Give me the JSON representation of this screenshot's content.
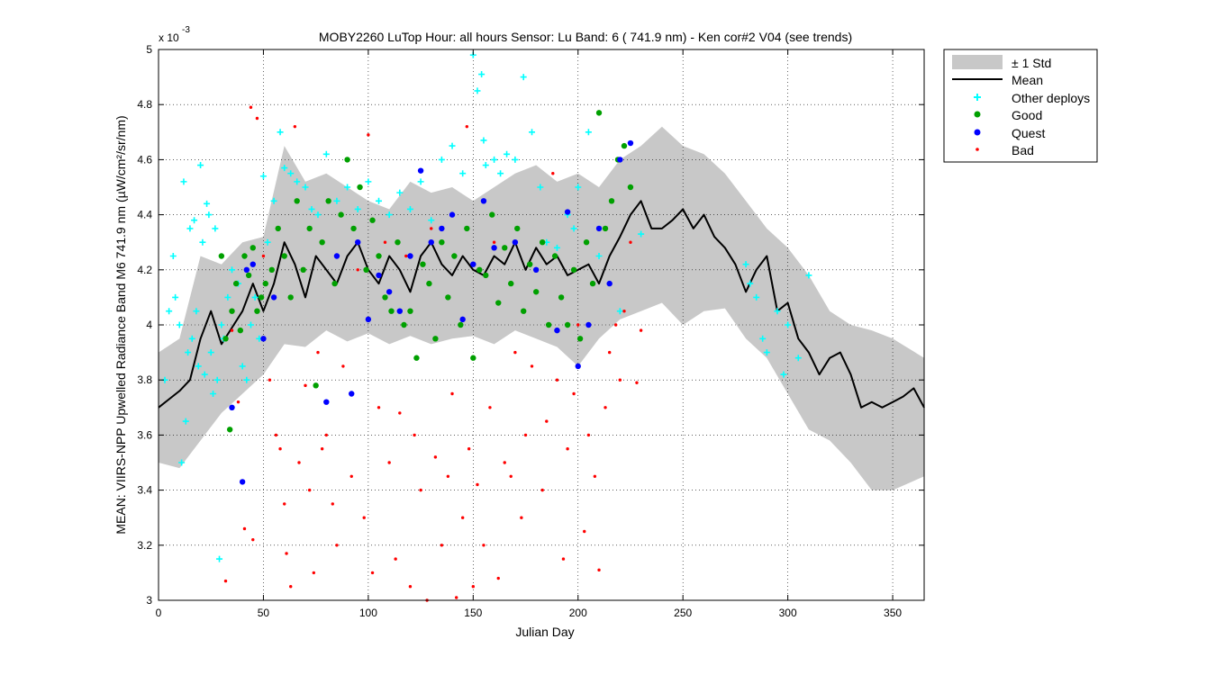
{
  "chart_data": {
    "type": "scatter",
    "title": "MOBY2260   LuTop  Hour: all hours  Sensor: Lu Band: 6 ( 741.9 nm)  - Ken cor#2 V04 (see trends)",
    "xlabel": "Julian Day",
    "ylabel": "MEAN: VIIRS-NPP Upwelled Radiance Band M6 741.9 nm (µW/cm²/sr/nm)",
    "y_exponent_label": "x 10",
    "y_exponent_power": "-3",
    "xlim": [
      0,
      365
    ],
    "ylim": [
      3.0,
      5.0
    ],
    "y_scale_factor": "1e-3",
    "grid": true,
    "legend_position": "outside-top-right",
    "x_ticks": [
      "0",
      "50",
      "100",
      "150",
      "200",
      "250",
      "300",
      "350"
    ],
    "y_ticks": [
      "3",
      "3.2",
      "3.4",
      "3.6",
      "3.8",
      "4",
      "4.2",
      "4.4",
      "4.6",
      "4.8",
      "5"
    ],
    "colors": {
      "std_band": "#c8c8c8",
      "mean": "#000000",
      "other": "#00ffff",
      "good": "#00a000",
      "quest": "#0000ff",
      "bad": "#ff0000"
    },
    "legend": [
      {
        "label": "± 1 Std",
        "marker": "band"
      },
      {
        "label": "Mean",
        "marker": "line"
      },
      {
        "label": "Other deploys",
        "marker": "plus"
      },
      {
        "label": "Good",
        "marker": "dot"
      },
      {
        "label": "Quest",
        "marker": "dot"
      },
      {
        "label": "Bad",
        "marker": "small-dot"
      }
    ],
    "series": [
      {
        "name": "± 1 Std",
        "x": [
          0,
          10,
          20,
          30,
          40,
          50,
          60,
          70,
          80,
          90,
          100,
          110,
          120,
          130,
          140,
          150,
          160,
          170,
          180,
          190,
          200,
          210,
          220,
          230,
          240,
          250,
          260,
          270,
          280,
          290,
          300,
          310,
          320,
          330,
          340,
          350,
          365
        ],
        "lower": [
          3.5,
          3.48,
          3.58,
          3.68,
          3.75,
          3.82,
          3.93,
          3.92,
          3.98,
          3.94,
          3.97,
          3.93,
          3.96,
          3.93,
          3.95,
          3.96,
          3.93,
          3.98,
          3.95,
          3.92,
          3.85,
          3.95,
          4.02,
          4.05,
          4.08,
          4.0,
          4.05,
          4.06,
          3.95,
          3.88,
          3.75,
          3.62,
          3.58,
          3.5,
          3.4,
          3.4,
          3.45
        ],
        "upper": [
          3.9,
          3.95,
          4.25,
          4.22,
          4.3,
          4.32,
          4.65,
          4.52,
          4.55,
          4.5,
          4.45,
          4.42,
          4.52,
          4.48,
          4.5,
          4.45,
          4.5,
          4.55,
          4.58,
          4.52,
          4.55,
          4.5,
          4.6,
          4.65,
          4.72,
          4.65,
          4.62,
          4.55,
          4.45,
          4.35,
          4.28,
          4.18,
          4.05,
          4.0,
          3.98,
          3.95,
          3.88
        ]
      },
      {
        "name": "Mean",
        "x": [
          0,
          5,
          10,
          15,
          20,
          25,
          30,
          35,
          40,
          45,
          50,
          55,
          60,
          65,
          70,
          75,
          80,
          85,
          90,
          95,
          100,
          105,
          110,
          115,
          120,
          125,
          130,
          135,
          140,
          145,
          150,
          155,
          160,
          165,
          170,
          175,
          180,
          185,
          190,
          195,
          200,
          205,
          210,
          215,
          220,
          225,
          230,
          235,
          240,
          245,
          250,
          255,
          260,
          265,
          270,
          275,
          280,
          285,
          290,
          295,
          300,
          305,
          310,
          315,
          320,
          325,
          330,
          335,
          340,
          345,
          350,
          355,
          360,
          365
        ],
        "y": [
          3.7,
          3.73,
          3.76,
          3.8,
          3.95,
          4.05,
          3.93,
          3.99,
          4.05,
          4.15,
          4.05,
          4.15,
          4.3,
          4.22,
          4.1,
          4.25,
          4.2,
          4.15,
          4.25,
          4.3,
          4.2,
          4.15,
          4.25,
          4.2,
          4.12,
          4.25,
          4.3,
          4.22,
          4.18,
          4.25,
          4.2,
          4.18,
          4.25,
          4.22,
          4.3,
          4.2,
          4.28,
          4.22,
          4.25,
          4.18,
          4.2,
          4.22,
          4.15,
          4.25,
          4.32,
          4.4,
          4.45,
          4.35,
          4.35,
          4.38,
          4.42,
          4.35,
          4.4,
          4.32,
          4.28,
          4.22,
          4.12,
          4.2,
          4.25,
          4.05,
          4.08,
          3.95,
          3.9,
          3.82,
          3.88,
          3.9,
          3.82,
          3.7,
          3.72,
          3.7,
          3.72,
          3.74,
          3.77,
          3.7
        ]
      },
      {
        "name": "Other deploys",
        "x": [
          3,
          5,
          7,
          8,
          10,
          11,
          12,
          13,
          14,
          15,
          16,
          17,
          18,
          19,
          20,
          21,
          22,
          23,
          24,
          25,
          26,
          27,
          28,
          29,
          30,
          31,
          33,
          35,
          38,
          40,
          42,
          44,
          46,
          48,
          50,
          52,
          55,
          58,
          60,
          63,
          66,
          70,
          73,
          76,
          80,
          85,
          90,
          95,
          100,
          105,
          110,
          115,
          120,
          125,
          130,
          135,
          140,
          145,
          150,
          152,
          154,
          155,
          156,
          160,
          163,
          166,
          170,
          174,
          178,
          182,
          185,
          190,
          195,
          198,
          200,
          205,
          210,
          220,
          230,
          280,
          282,
          285,
          288,
          290,
          295,
          298,
          300,
          305,
          310
        ],
        "y": [
          3.8,
          4.05,
          4.25,
          4.1,
          4.0,
          3.5,
          4.52,
          3.65,
          3.9,
          4.35,
          3.95,
          4.38,
          4.05,
          3.85,
          4.58,
          4.3,
          3.82,
          4.44,
          4.4,
          3.9,
          3.75,
          4.35,
          3.8,
          3.15,
          4.0,
          3.95,
          4.1,
          4.2,
          4.15,
          3.85,
          3.8,
          4.0,
          4.1,
          3.95,
          4.54,
          4.3,
          4.45,
          4.7,
          4.57,
          4.55,
          4.52,
          4.5,
          4.42,
          4.4,
          4.62,
          4.45,
          4.5,
          4.42,
          4.52,
          4.45,
          4.4,
          4.48,
          4.42,
          4.52,
          4.38,
          4.6,
          4.65,
          4.55,
          4.98,
          4.85,
          4.91,
          4.67,
          4.58,
          4.6,
          4.55,
          4.62,
          4.6,
          4.9,
          4.7,
          4.5,
          4.3,
          4.28,
          4.4,
          4.35,
          4.5,
          4.7,
          4.25,
          4.05,
          4.33,
          4.22,
          4.15,
          4.1,
          3.95,
          3.9,
          4.05,
          3.82,
          4.0,
          3.88,
          4.18
        ]
      },
      {
        "name": "Good",
        "x": [
          30,
          32,
          34,
          35,
          37,
          39,
          41,
          43,
          45,
          47,
          49,
          51,
          54,
          57,
          60,
          63,
          66,
          69,
          72,
          75,
          78,
          81,
          84,
          87,
          90,
          93,
          96,
          99,
          102,
          105,
          108,
          111,
          114,
          117,
          120,
          123,
          126,
          129,
          132,
          135,
          138,
          141,
          144,
          147,
          150,
          153,
          156,
          159,
          162,
          165,
          168,
          171,
          174,
          177,
          180,
          183,
          186,
          189,
          192,
          195,
          198,
          201,
          204,
          207,
          210,
          213,
          216,
          219,
          222,
          225
        ],
        "y": [
          4.25,
          3.95,
          3.62,
          4.05,
          4.15,
          3.98,
          4.25,
          4.18,
          4.28,
          4.05,
          4.1,
          4.15,
          4.2,
          4.35,
          4.25,
          4.1,
          4.45,
          4.2,
          4.35,
          3.78,
          4.3,
          4.45,
          4.15,
          4.4,
          4.6,
          4.35,
          4.5,
          4.2,
          4.38,
          4.25,
          4.1,
          4.05,
          4.3,
          4.0,
          4.05,
          3.88,
          4.22,
          4.15,
          3.95,
          4.3,
          4.1,
          4.25,
          4.0,
          4.35,
          3.88,
          4.2,
          4.18,
          4.4,
          4.08,
          4.28,
          4.15,
          4.35,
          4.05,
          4.22,
          4.12,
          4.3,
          4.0,
          4.25,
          4.1,
          4.0,
          4.2,
          3.95,
          4.3,
          4.15,
          4.77,
          4.35,
          4.45,
          4.6,
          4.65,
          4.5
        ],
        "size": "large"
      },
      {
        "name": "Quest",
        "x": [
          35,
          40,
          42,
          45,
          50,
          55,
          80,
          85,
          92,
          95,
          100,
          105,
          110,
          115,
          120,
          125,
          130,
          135,
          140,
          145,
          150,
          155,
          160,
          170,
          180,
          190,
          195,
          200,
          205,
          210,
          215,
          220,
          225
        ],
        "y": [
          3.7,
          3.43,
          4.2,
          4.22,
          3.95,
          4.1,
          3.72,
          4.25,
          3.75,
          4.3,
          4.02,
          4.18,
          4.12,
          4.05,
          4.25,
          4.56,
          4.3,
          4.35,
          4.4,
          4.02,
          4.22,
          4.45,
          4.28,
          4.3,
          4.2,
          3.98,
          4.41,
          3.85,
          4.0,
          4.35,
          4.15,
          4.6,
          4.66
        ],
        "size": "large"
      },
      {
        "name": "Bad",
        "x": [
          32,
          35,
          38,
          41,
          44,
          45,
          47,
          50,
          53,
          56,
          58,
          60,
          61,
          63,
          65,
          67,
          70,
          72,
          74,
          76,
          78,
          80,
          83,
          85,
          88,
          90,
          92,
          95,
          98,
          100,
          102,
          105,
          108,
          110,
          113,
          115,
          118,
          120,
          122,
          125,
          128,
          130,
          132,
          135,
          138,
          140,
          142,
          145,
          147,
          148,
          150,
          152,
          155,
          158,
          160,
          162,
          165,
          168,
          170,
          173,
          175,
          178,
          180,
          183,
          185,
          188,
          190,
          193,
          195,
          198,
          200,
          203,
          205,
          208,
          210,
          213,
          215,
          218,
          220,
          222,
          225,
          228,
          230
        ],
        "y": [
          3.07,
          3.98,
          3.72,
          3.26,
          4.79,
          3.22,
          4.75,
          4.25,
          3.8,
          3.6,
          3.55,
          3.35,
          3.17,
          3.05,
          4.72,
          3.5,
          3.78,
          3.4,
          3.1,
          3.9,
          3.55,
          3.6,
          3.35,
          3.2,
          3.85,
          4.6,
          3.45,
          4.2,
          3.3,
          4.69,
          3.1,
          3.7,
          4.3,
          3.5,
          3.15,
          3.68,
          4.25,
          3.05,
          3.6,
          3.4,
          3.0,
          4.35,
          3.52,
          3.2,
          3.45,
          3.75,
          3.01,
          3.3,
          4.72,
          3.55,
          3.05,
          3.42,
          3.2,
          3.7,
          4.3,
          3.08,
          3.5,
          3.45,
          3.9,
          3.3,
          3.6,
          3.85,
          4.2,
          3.4,
          3.65,
          4.55,
          3.8,
          3.15,
          3.55,
          3.75,
          4.0,
          3.25,
          3.6,
          3.45,
          3.11,
          3.7,
          3.9,
          4.0,
          3.8,
          4.05,
          4.3,
          3.79,
          3.98
        ],
        "size": "small"
      }
    ]
  }
}
